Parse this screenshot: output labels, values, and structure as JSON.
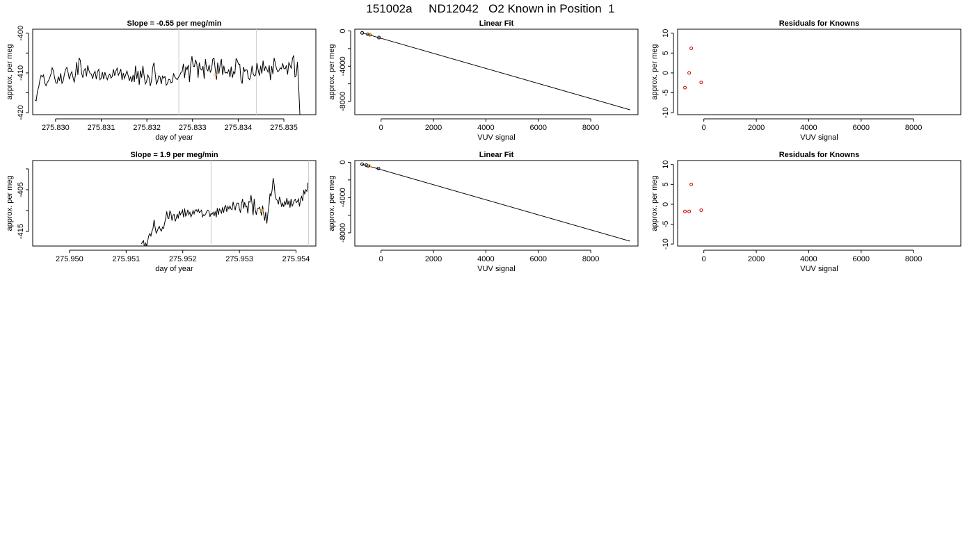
{
  "figure_title": "151002a     ND12042   O2 Known in Position  1",
  "chart_data": [
    {
      "type": "line",
      "title": "Slope =  -0.55  per meg/min",
      "xlabel": "day of year",
      "ylabel": "approx. per meg",
      "xlim": [
        275.8295,
        275.8357
      ],
      "ylim": [
        -420.5,
        -399
      ],
      "xticks": [
        275.83,
        275.831,
        275.832,
        275.833,
        275.834,
        275.835
      ],
      "xtick_labels": [
        "275.830",
        "275.831",
        "275.832",
        "275.833",
        "275.834",
        "275.835"
      ],
      "yticks": [
        -420,
        -410,
        -400
      ],
      "ytick_labels": [
        "-420",
        "-410",
        "-400"
      ],
      "ytick_minor": [
        -415,
        -405
      ],
      "vlines": [
        275.8327,
        275.8344
      ],
      "highlight_point": {
        "x": 275.8335,
        "y": -410.5,
        "color": "#f5b041"
      },
      "series": [
        {
          "x_start": 275.82955,
          "x_end": 275.83535,
          "values": [
            -416.8,
            -417.0,
            -414.6,
            -413.6,
            -411.8,
            -410.6,
            -411.0,
            -410.5,
            -412.6,
            -413.2,
            -412.4,
            -412.0,
            -411.2,
            -410.3,
            -408.7,
            -409.5,
            -411.2,
            -412.5,
            -412.6,
            -410.9,
            -412.0,
            -410.1,
            -412.6,
            -412.0,
            -410.3,
            -409.1,
            -408.6,
            -409.9,
            -411.6,
            -410.4,
            -409.7,
            -411.1,
            -412.4,
            -410.5,
            -407.3,
            -410.5,
            -406.2,
            -406.9,
            -410.0,
            -411.2,
            -409.4,
            -408.9,
            -410.9,
            -408.1,
            -409.4,
            -410.2,
            -410.3,
            -411.5,
            -410.2,
            -409.6,
            -411.6,
            -409.7,
            -409.1,
            -411.7,
            -411.3,
            -409.8,
            -411.6,
            -409.8,
            -410.9,
            -411.7,
            -410.7,
            -410.3,
            -411.3,
            -410.9,
            -409.1,
            -410.7,
            -409.5,
            -408.8,
            -410.6,
            -409.9,
            -409.0,
            -411.8,
            -410.0,
            -411.4,
            -410.4,
            -409.5,
            -410.7,
            -412.0,
            -410.9,
            -412.3,
            -410.5,
            -412.3,
            -408.2,
            -411.5,
            -409.5,
            -413.0,
            -409.4,
            -411.2,
            -408.2,
            -410.7,
            -412.8,
            -412.2,
            -410.5,
            -411.2,
            -413.3,
            -412.0,
            -408.7,
            -407.4,
            -410.0,
            -412.8,
            -412.1,
            -410.7,
            -411.0,
            -412.8,
            -410.8,
            -411.3,
            -410.9,
            -413.1,
            -412.7,
            -411.6,
            -411.7,
            -412.5,
            -412.3,
            -410.1,
            -411.0,
            -411.4,
            -411.7,
            -411.1,
            -410.7,
            -409.9,
            -409.7,
            -407.7,
            -411.3,
            -408.4,
            -409.2,
            -408.0,
            -412.3,
            -407.8,
            -405.8,
            -408.3,
            -408.4,
            -406.7,
            -407.8,
            -411.2,
            -407.4,
            -409.0,
            -409.3,
            -408.3,
            -411.5,
            -406.5,
            -409.0,
            -409.5,
            -408.0,
            -409.9,
            -409.0,
            -406.5,
            -406.3,
            -409.1,
            -411.7,
            -407.4,
            -410.2,
            -407.9,
            -406.5,
            -410.5,
            -408.2,
            -410.0,
            -409.9,
            -410.1,
            -409.1,
            -411.1,
            -408.4,
            -411.2,
            -409.7,
            -410.2,
            -406.4,
            -406.9,
            -407.8,
            -407.8,
            -411.9,
            -412.7,
            -408.5,
            -409.6,
            -409.2,
            -409.3,
            -411.3,
            -411.7,
            -410.7,
            -408.2,
            -410.3,
            -410.8,
            -410.5,
            -407.5,
            -409.3,
            -410.7,
            -408.2,
            -410.2,
            -406.9,
            -409.5,
            -408.4,
            -409.0,
            -409.8,
            -408.1,
            -411.8,
            -408.3,
            -410.3,
            -406.2,
            -407.6,
            -409.0,
            -409.7,
            -409.4,
            -408.7,
            -409.0,
            -407.6,
            -408.9,
            -409.0,
            -408.1,
            -410.4,
            -407.4,
            -408.1,
            -408.9,
            -406.3,
            -405.6,
            -411.0,
            -410.7,
            -407.2,
            -413.2,
            -420.5
          ]
        }
      ]
    },
    {
      "type": "scatter",
      "title": "Linear Fit",
      "xlabel": "VUV signal",
      "ylabel": "approx. per meg",
      "xlim": [
        -1000,
        9800
      ],
      "ylim": [
        -9500,
        200
      ],
      "xticks": [
        0,
        2000,
        4000,
        6000,
        8000
      ],
      "xtick_labels": [
        "0",
        "2000",
        "4000",
        "6000",
        "8000"
      ],
      "yticks": [
        -8000,
        -4000,
        0
      ],
      "ytick_labels": [
        "-8000",
        "-4000",
        "0"
      ],
      "ytick_minor": [
        -6000,
        -2000
      ],
      "fit_line": {
        "x": [
          -720,
          9500
        ],
        "y": [
          -220,
          -8950
        ]
      },
      "points": [
        {
          "x": -720,
          "y": -220,
          "color": "black"
        },
        {
          "x": -500,
          "y": -380,
          "color": "black"
        },
        {
          "x": -430,
          "y": -430,
          "color": "black"
        },
        {
          "x": -80,
          "y": -750,
          "color": "black"
        }
      ],
      "highlight_point": {
        "x": -450,
        "y": -410,
        "color": "#f5b041"
      }
    },
    {
      "type": "scatter",
      "title": "Residuals for Knowns",
      "xlabel": "VUV signal",
      "ylabel": "approx. per meg",
      "xlim": [
        -1000,
        9800
      ],
      "ylim": [
        -10.5,
        11
      ],
      "xticks": [
        0,
        2000,
        4000,
        6000,
        8000
      ],
      "xtick_labels": [
        "0",
        "2000",
        "4000",
        "6000",
        "8000"
      ],
      "yticks": [
        -10,
        -5,
        0,
        5,
        10
      ],
      "ytick_labels": [
        "-10",
        "-5",
        "0",
        "5",
        "10"
      ],
      "points": [
        {
          "x": -720,
          "y": -3.7,
          "color": "red"
        },
        {
          "x": -560,
          "y": 0.0,
          "color": "red"
        },
        {
          "x": -480,
          "y": 6.2,
          "color": "red"
        },
        {
          "x": -100,
          "y": -2.4,
          "color": "red"
        }
      ]
    },
    {
      "type": "line",
      "title": "Slope =  1.9  per meg/min",
      "xlabel": "day of year",
      "ylabel": "approx. per meg",
      "xlim": [
        275.94935,
        275.95435
      ],
      "ylim": [
        -418.5,
        -398
      ],
      "xticks": [
        275.95,
        275.951,
        275.952,
        275.953,
        275.954
      ],
      "xtick_labels": [
        "275.950",
        "275.951",
        "275.952",
        "275.953",
        "275.954"
      ],
      "yticks": [
        -415,
        -405
      ],
      "ytick_labels": [
        "-415",
        "-405"
      ],
      "ytick_minor": [
        -410,
        -400
      ],
      "vlines": [
        275.9525,
        275.95422
      ],
      "highlight_point": {
        "x": 275.9534,
        "y": -410.0,
        "color": "#f5b041"
      },
      "series": [
        {
          "x_start": 275.95127,
          "x_end": 275.95421,
          "values": [
            -418.0,
            -417.5,
            -417.2,
            -419.0,
            -417.7,
            -418.5,
            -417.2,
            -416.0,
            -415.5,
            -416.1,
            -414.9,
            -414.3,
            -412.2,
            -414.0,
            -415.4,
            -414.9,
            -414.2,
            -413.8,
            -414.6,
            -414.9,
            -414.0,
            -414.3,
            -413.0,
            -411.9,
            -410.2,
            -411.8,
            -411.9,
            -410.1,
            -410.6,
            -412.4,
            -411.1,
            -410.9,
            -412.6,
            -411.9,
            -410.8,
            -411.9,
            -410.1,
            -411.0,
            -410.5,
            -409.9,
            -411.6,
            -409.5,
            -411.3,
            -410.9,
            -409.8,
            -411.0,
            -410.4,
            -411.5,
            -410.9,
            -410.0,
            -410.8,
            -409.9,
            -409.8,
            -410.3,
            -409.7,
            -410.5,
            -410.2,
            -409.9,
            -411.5,
            -411.0,
            -411.2,
            -410.8,
            -410.2,
            -409.9,
            -410.1,
            -411.5,
            -410.7,
            -410.9,
            -410.4,
            -411.3,
            -410.2,
            -411.6,
            -409.4,
            -411.0,
            -409.6,
            -410.0,
            -410.6,
            -409.2,
            -410.5,
            -409.1,
            -408.8,
            -410.3,
            -409.0,
            -409.6,
            -408.9,
            -409.6,
            -409.8,
            -407.9,
            -409.1,
            -409.9,
            -408.5,
            -408.2,
            -408.2,
            -409.6,
            -410.5,
            -408.3,
            -407.2,
            -409.5,
            -408.0,
            -409.1,
            -408.9,
            -410.7,
            -407.8,
            -408.0,
            -406.3,
            -408.4,
            -411.1,
            -407.2,
            -409.8,
            -411.0,
            -409.6,
            -409.5,
            -409.2,
            -410.0,
            -411.2,
            -408.8,
            -410.7,
            -412.4,
            -410.3,
            -413.1,
            -410.7,
            -408.9,
            -405.9,
            -406.5,
            -405.1,
            -402.2,
            -403.8,
            -406.7,
            -407.3,
            -407.6,
            -408.5,
            -406.7,
            -407.6,
            -409.1,
            -408.2,
            -409.1,
            -407.8,
            -408.5,
            -407.0,
            -408.6,
            -407.6,
            -409.3,
            -407.2,
            -409.0,
            -408.3,
            -407.6,
            -407.3,
            -408.1,
            -407.8,
            -407.2,
            -409.0,
            -407.3,
            -406.6,
            -407.7,
            -405.1,
            -406.1,
            -405.0,
            -405.4,
            -403.3
          ]
        }
      ]
    },
    {
      "type": "scatter",
      "title": "Linear Fit",
      "xlabel": "VUV signal",
      "ylabel": "approx. per meg",
      "xlim": [
        -1000,
        9800
      ],
      "ylim": [
        -9500,
        200
      ],
      "xticks": [
        0,
        2000,
        4000,
        6000,
        8000
      ],
      "xtick_labels": [
        "0",
        "2000",
        "4000",
        "6000",
        "8000"
      ],
      "yticks": [
        -8000,
        -4000,
        0
      ],
      "ytick_labels": [
        "-8000",
        "-4000",
        "0"
      ],
      "ytick_minor": [
        -6000,
        -2000
      ],
      "fit_line": {
        "x": [
          -720,
          9500
        ],
        "y": [
          -220,
          -8950
        ]
      },
      "points": [
        {
          "x": -720,
          "y": -220,
          "color": "black"
        },
        {
          "x": -560,
          "y": -320,
          "color": "black"
        },
        {
          "x": -480,
          "y": -430,
          "color": "black"
        },
        {
          "x": -100,
          "y": -710,
          "color": "black"
        }
      ],
      "highlight_point": {
        "x": -450,
        "y": -400,
        "color": "#f5b041"
      }
    },
    {
      "type": "scatter",
      "title": "Residuals for Knowns",
      "xlabel": "VUV signal",
      "ylabel": "approx. per meg",
      "xlim": [
        -1000,
        9800
      ],
      "ylim": [
        -10.5,
        11
      ],
      "xticks": [
        0,
        2000,
        4000,
        6000,
        8000
      ],
      "xtick_labels": [
        "0",
        "2000",
        "4000",
        "6000",
        "8000"
      ],
      "yticks": [
        -10,
        -5,
        0,
        5,
        10
      ],
      "ytick_labels": [
        "-10",
        "-5",
        "0",
        "5",
        "10"
      ],
      "points": [
        {
          "x": -720,
          "y": -1.8,
          "color": "red"
        },
        {
          "x": -560,
          "y": -1.8,
          "color": "red"
        },
        {
          "x": -480,
          "y": 5.0,
          "color": "red"
        },
        {
          "x": -100,
          "y": -1.5,
          "color": "red"
        }
      ]
    }
  ]
}
